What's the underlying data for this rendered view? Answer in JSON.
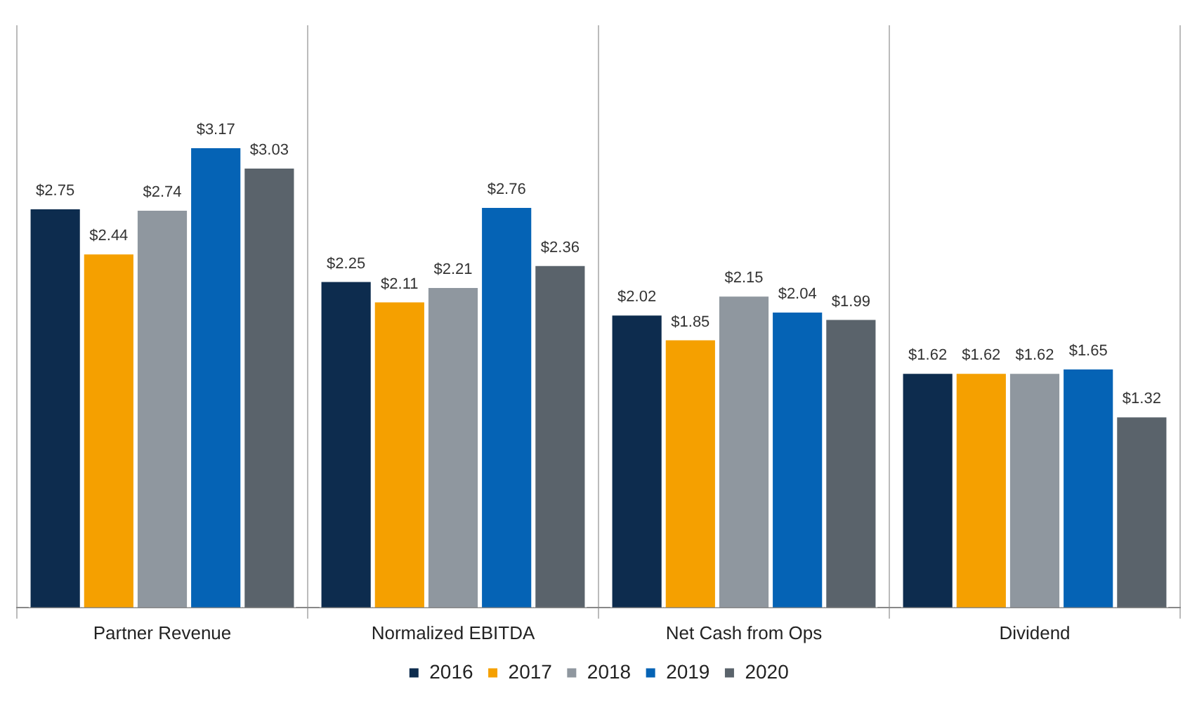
{
  "chart_data": {
    "type": "bar",
    "categories": [
      "Partner Revenue",
      "Normalized EBITDA",
      "Net Cash from Ops",
      "Dividend"
    ],
    "series": [
      {
        "name": "2016",
        "color": "#0d2c4e",
        "values": [
          2.75,
          2.25,
          2.02,
          1.62
        ],
        "value_labels": [
          "$2.75",
          "$2.25",
          "$2.02",
          "$1.62"
        ]
      },
      {
        "name": "2017",
        "color": "#f5a000",
        "values": [
          2.44,
          2.11,
          1.85,
          1.62
        ],
        "value_labels": [
          "$2.44",
          "$2.11",
          "$1.85",
          "$1.62"
        ]
      },
      {
        "name": "2018",
        "color": "#8f979f",
        "values": [
          2.74,
          2.21,
          2.15,
          1.62
        ],
        "value_labels": [
          "$2.74",
          "$2.21",
          "$2.15",
          "$1.62"
        ]
      },
      {
        "name": "2019",
        "color": "#0563b5",
        "values": [
          3.17,
          2.76,
          2.04,
          1.65
        ],
        "value_labels": [
          "$3.17",
          "$2.76",
          "$2.04",
          "$1.65"
        ]
      },
      {
        "name": "2020",
        "color": "#5a636b",
        "values": [
          3.03,
          2.36,
          1.99,
          1.32
        ],
        "value_labels": [
          "$3.03",
          "$2.36",
          "$1.99",
          "$1.32"
        ]
      }
    ],
    "grid": "x",
    "legend": "bottom"
  }
}
